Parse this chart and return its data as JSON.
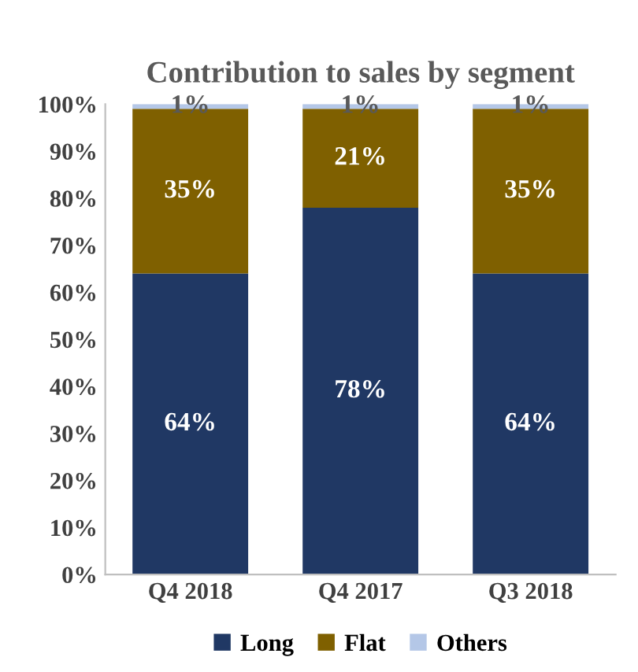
{
  "chart_data": {
    "type": "bar",
    "title": "Contribution to sales by segment",
    "categories": [
      "Q4 2018",
      "Q4 2017",
      "Q3 2018"
    ],
    "stacked": true,
    "ylim": [
      0,
      100
    ],
    "yticks": [
      {
        "value": 0,
        "label": "0%"
      },
      {
        "value": 10,
        "label": "10%"
      },
      {
        "value": 20,
        "label": "20%"
      },
      {
        "value": 30,
        "label": "30%"
      },
      {
        "value": 40,
        "label": "40%"
      },
      {
        "value": 50,
        "label": "50%"
      },
      {
        "value": 60,
        "label": "60%"
      },
      {
        "value": 70,
        "label": "70%"
      },
      {
        "value": 80,
        "label": "80%"
      },
      {
        "value": 90,
        "label": "90%"
      },
      {
        "value": 100,
        "label": "100%"
      }
    ],
    "series": [
      {
        "name": "Long",
        "color": "#203864",
        "values": [
          64,
          78,
          64
        ],
        "value_labels": [
          "64%",
          "78%",
          "64%"
        ]
      },
      {
        "name": "Flat",
        "color": "#7f6000",
        "values": [
          35,
          21,
          35
        ],
        "value_labels": [
          "35%",
          "21%",
          "35%"
        ]
      },
      {
        "name": "Others",
        "color": "#b4c7e7",
        "values": [
          1,
          1,
          1
        ],
        "value_labels": [
          "1%",
          "1%",
          "1%"
        ]
      }
    ],
    "legend": "bottom",
    "grid": false
  }
}
